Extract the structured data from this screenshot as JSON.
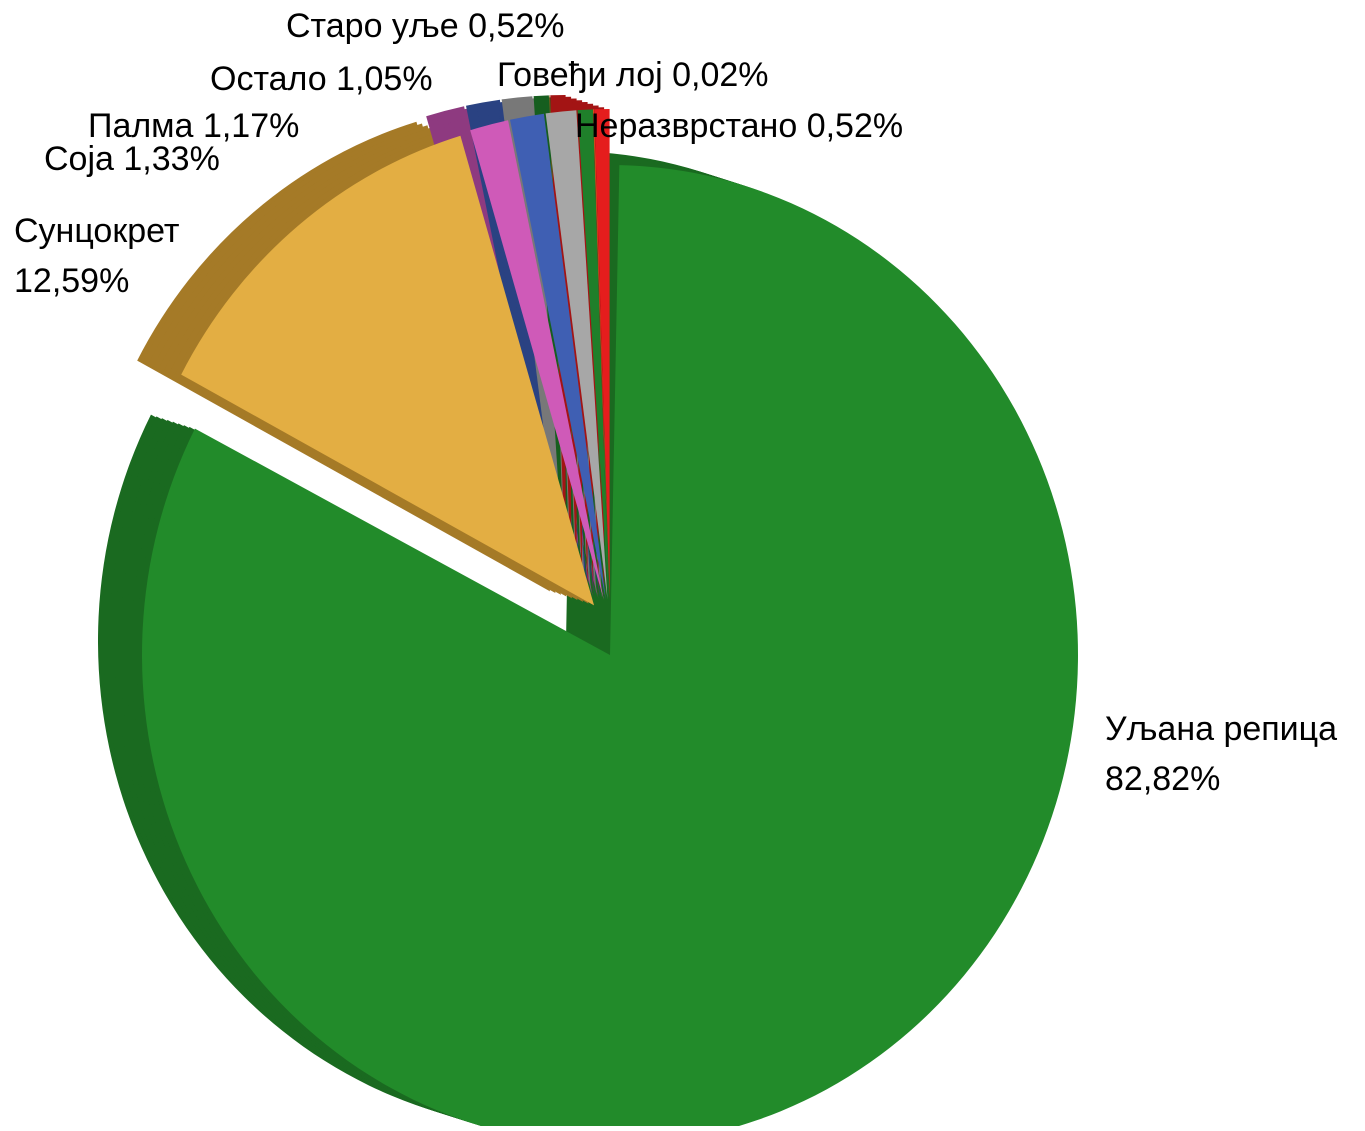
{
  "chart_data": {
    "type": "pie",
    "title": "",
    "labels_style": "outside",
    "slices": [
      {
        "label": "Уљана репица",
        "value_text": "82,82%",
        "value": 82.82,
        "color": "#228B2A",
        "side_color": "#1A6A20"
      },
      {
        "label": "Сунцокрет",
        "value_text": "12,59%",
        "value": 12.59,
        "color": "#E3AE43",
        "side_color": "#A57A27"
      },
      {
        "label": "Соја",
        "value_text": "1,33%",
        "value": 1.33,
        "color": "#CF5AB8",
        "side_color": "#8E3A80"
      },
      {
        "label": "Палма",
        "value_text": "1,17%",
        "value": 1.17,
        "color": "#3F5FB3",
        "side_color": "#2A4282"
      },
      {
        "label": "Остало",
        "value_text": "1,05%",
        "value": 1.05,
        "color": "#A7A7A7",
        "side_color": "#787878"
      },
      {
        "label": "Старо уље",
        "value_text": "0,52%",
        "value": 0.52,
        "color": "#1F7F2A",
        "side_color": "#165E1F"
      },
      {
        "label": "Говеђи лој",
        "value_text": "0,02%",
        "value": 0.02,
        "color": "#E87C21",
        "side_color": "#A85A18"
      },
      {
        "label": "Неразврстано",
        "value_text": "0,52%",
        "value": 0.52,
        "color": "#E51D1D",
        "side_color": "#A31414"
      }
    ]
  }
}
